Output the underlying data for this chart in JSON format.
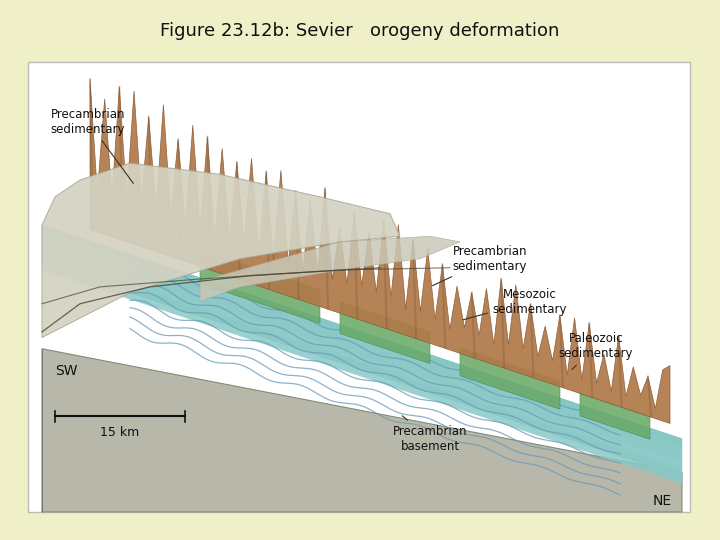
{
  "title": "Figure 23.12b: Sevier   orogeny deformation",
  "title_fontsize": 13,
  "background_color": "#f0f0c8",
  "panel_bg": "#ffffff",
  "label_SW": "SW",
  "label_NE": "NE",
  "label_15km": "15 km",
  "colors": {
    "block_gray_top": "#b8b8aa",
    "block_gray_side": "#a0a090",
    "block_gray_front": "#909080",
    "teal1": "#80c4c0",
    "teal2": "#90cccc",
    "teal3": "#a0d4d0",
    "blue_wave": "#88bbd0",
    "green1": "#6aaa6a",
    "green2": "#7ab87a",
    "brown": "#b07848",
    "brown_dark": "#8a5830",
    "gray_thrust": "#d0cfc0",
    "gray_thrust2": "#c0bfb0",
    "white_panel": "#ffffff"
  }
}
